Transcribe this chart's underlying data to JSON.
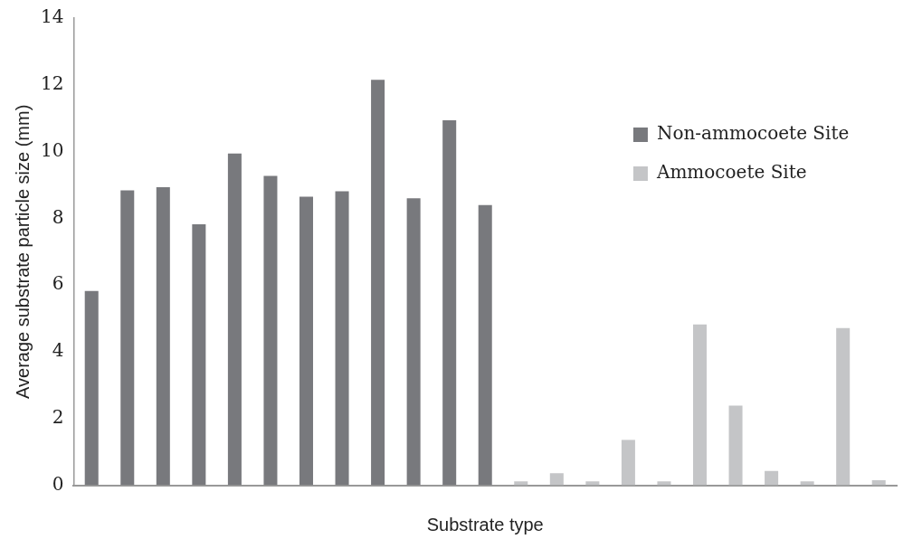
{
  "chart_data": {
    "type": "bar",
    "xlabel": "Substrate type",
    "ylabel": "Average substrate particle size (mm)",
    "categories": [
      null,
      null,
      null,
      null,
      null,
      null,
      null,
      null,
      null,
      null,
      null,
      null,
      null,
      null,
      null,
      null,
      null,
      null,
      null,
      null,
      null,
      null,
      null
    ],
    "series": [
      {
        "name": "Non-ammocoete Site",
        "color": "#78797d",
        "values": [
          5.82,
          8.84,
          8.93,
          7.82,
          9.94,
          9.27,
          8.65,
          8.81,
          12.15,
          8.6,
          10.94,
          8.4,
          null,
          null,
          null,
          null,
          null,
          null,
          null,
          null,
          null,
          null,
          null
        ]
      },
      {
        "name": "Ammocoete Site",
        "color": "#c4c5c7",
        "values": [
          null,
          null,
          null,
          null,
          null,
          null,
          null,
          null,
          null,
          null,
          null,
          null,
          0.12,
          0.36,
          0.12,
          1.36,
          0.12,
          4.82,
          2.39,
          0.43,
          0.12,
          4.71,
          0.15
        ]
      }
    ],
    "ylim": [
      0,
      14
    ],
    "yticks": [
      0,
      2,
      4,
      6,
      8,
      10,
      12,
      14
    ],
    "grid": false,
    "legend": "right"
  }
}
